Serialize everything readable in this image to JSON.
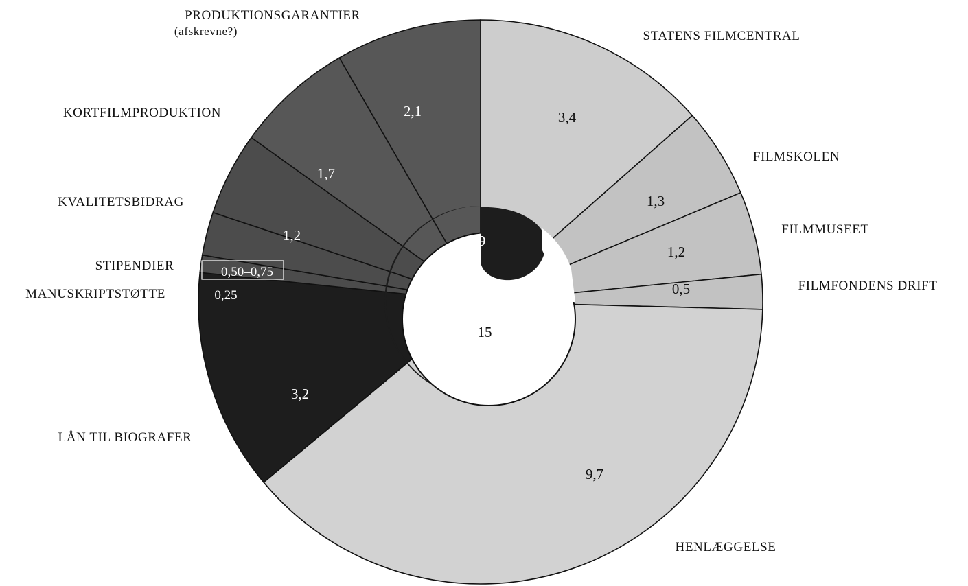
{
  "chart_data": {
    "type": "pie",
    "title": "",
    "colors": {
      "light": "#cdcdcd",
      "light_outer": "#c2c2c2",
      "henlaeggelse": "#d2d2d2",
      "dark": "#575757",
      "darker": "#4c4c4c",
      "black": "#1d1d1d",
      "white": "#ffffff"
    },
    "slices": [
      {
        "label": "STATENS FILMCENTRAL",
        "value_label": "3,4",
        "value": 3.4,
        "shade": "light"
      },
      {
        "label": "FILMSKOLEN",
        "value_label": "1,3",
        "value": 1.3,
        "shade": "light_outer"
      },
      {
        "label": "FILMMUSEET",
        "value_label": "1,2",
        "value": 1.2,
        "shade": "light_outer"
      },
      {
        "label": "FILMFONDENS DRIFT",
        "value_label": "0,5",
        "value": 0.5,
        "shade": "light_outer"
      },
      {
        "label": "HENLÆGGELSE",
        "value_label": "9,7",
        "value": 9.7,
        "shade": "henlaeggelse"
      },
      {
        "label": "LÅN TIL BIOGRAFER",
        "value_label": "3,2",
        "value": 3.2,
        "shade": "black"
      },
      {
        "label": "MANUSKRIPTSTØTTE",
        "value_label": "0,25",
        "value": 0.25,
        "shade": "darker"
      },
      {
        "label": "STIPENDIER",
        "value_label": "0,50–0,75",
        "value": 0.625,
        "shade": "darker"
      },
      {
        "label": "KVALITETSBIDRAG",
        "value_label": "1,2",
        "value": 1.2,
        "shade": "darker"
      },
      {
        "label": "KORTFILMPRODUKTION",
        "value_label": "1,7",
        "value": 1.7,
        "shade": "dark"
      },
      {
        "label": "PRODUKTIONSGARANTIER",
        "sublabel": "(afskrevne?)",
        "value_label": "2,1",
        "value": 2.1,
        "shade": "dark"
      }
    ],
    "inner": {
      "dark_value_label": "9",
      "white_value_label": "15"
    }
  }
}
